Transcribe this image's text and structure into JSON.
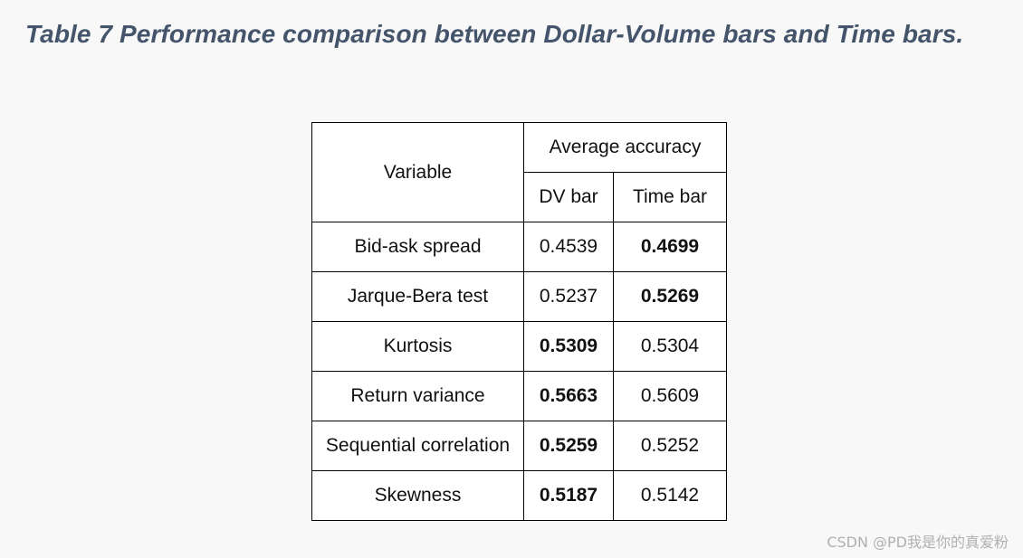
{
  "title": "Table 7 Performance comparison between Dollar-Volume bars and Time bars.",
  "table": {
    "header_group": "Average accuracy",
    "variable_header": "Variable",
    "columns": [
      "DV bar",
      "Time bar"
    ],
    "rows": [
      {
        "variable": "Bid-ask spread",
        "dv": "0.4539",
        "time": "0.4699",
        "bold": "time"
      },
      {
        "variable": "Jarque-Bera test",
        "dv": "0.5237",
        "time": "0.5269",
        "bold": "time"
      },
      {
        "variable": "Kurtosis",
        "dv": "0.5309",
        "time": "0.5304",
        "bold": "dv"
      },
      {
        "variable": "Return variance",
        "dv": "0.5663",
        "time": "0.5609",
        "bold": "dv"
      },
      {
        "variable": "Sequential correlation",
        "dv": "0.5259",
        "time": "0.5252",
        "bold": "dv"
      },
      {
        "variable": "Skewness",
        "dv": "0.5187",
        "time": "0.5142",
        "bold": "dv"
      }
    ]
  },
  "watermark": "CSDN @PD我是你的真爱粉"
}
